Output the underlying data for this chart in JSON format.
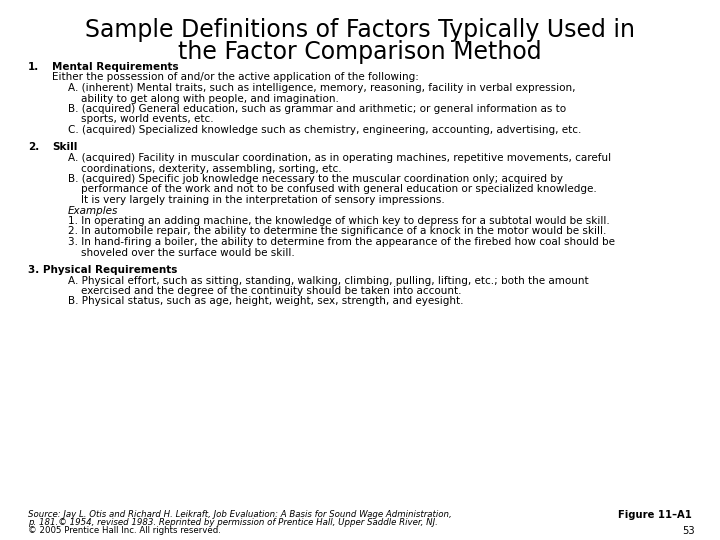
{
  "title_line1": "Sample Definitions of Factors Typically Used in",
  "title_line2": "the Factor Comparison Method",
  "bg_color": "#ffffff",
  "text_color": "#000000",
  "title_fontsize": 17,
  "body_fontsize": 7.5,
  "bold_fontsize": 7.5,
  "footer_fontsize": 6.2,
  "sections": [
    {
      "number": "1.",
      "heading": "Mental Requirements",
      "heading_inline": false,
      "lines": [
        {
          "indent": 0,
          "text": "Either the possession of and/or the active application of the following:"
        },
        {
          "indent": 1,
          "text": "A. (inherent) Mental traits, such as intelligence, memory, reasoning, facility in verbal expression,"
        },
        {
          "indent": 2,
          "text": "ability to get along with people, and imagination."
        },
        {
          "indent": 1,
          "text": "B. (acquired) General education, such as grammar and arithmetic; or general information as to"
        },
        {
          "indent": 2,
          "text": "sports, world events, etc."
        },
        {
          "indent": 1,
          "text": "C. (acquired) Specialized knowledge such as chemistry, engineering, accounting, advertising, etc."
        }
      ]
    },
    {
      "number": "2.",
      "heading": "Skill",
      "heading_inline": false,
      "lines": [
        {
          "indent": 1,
          "text": "A. (acquired) Facility in muscular coordination, as in operating machines, repetitive movements, careful"
        },
        {
          "indent": 2,
          "text": "coordinations, dexterity, assembling, sorting, etc."
        },
        {
          "indent": 1,
          "text": "B. (acquired) Specific job knowledge necessary to the muscular coordination only; acquired by"
        },
        {
          "indent": 2,
          "text": "performance of the work and not to be confused with general education or specialized knowledge."
        },
        {
          "indent": 2,
          "text": "It is very largely training in the interpretation of sensory impressions."
        },
        {
          "indent": 1,
          "text": "Examples",
          "italic": true
        },
        {
          "indent": 1,
          "text": "1. In operating an adding machine, the knowledge of which key to depress for a subtotal would be skill."
        },
        {
          "indent": 1,
          "text": "2. In automobile repair, the ability to determine the significance of a knock in the motor would be skill."
        },
        {
          "indent": 1,
          "text": "3. In hand-firing a boiler, the ability to determine from the appearance of the firebed how coal should be"
        },
        {
          "indent": 2,
          "text": "shoveled over the surface would be skill."
        }
      ]
    },
    {
      "number": "3.",
      "heading": "Physical Requirements",
      "heading_inline": true,
      "lines": [
        {
          "indent": 1,
          "text": "A. Physical effort, such as sitting, standing, walking, climbing, pulling, lifting, etc.; both the amount"
        },
        {
          "indent": 2,
          "text": "exercised and the degree of the continuity should be taken into account."
        },
        {
          "indent": 1,
          "text": "B. Physical status, such as age, height, weight, sex, strength, and eyesight."
        }
      ]
    }
  ],
  "footer_left_line1": "Source: Jay L. Otis and Richard H. Leikraft, Job Evaluation: A Basis for Sound Wage Administration,",
  "footer_left_line2": "p. 181.© 1954, revised 1983. Reprinted by permission of Prentice Hall, Upper Saddle River, NJ.",
  "footer_left_line3": "© 2005 Prentice Hall Inc. All rights reserved.",
  "footer_right": "Figure 11–A1",
  "footer_page": "53"
}
